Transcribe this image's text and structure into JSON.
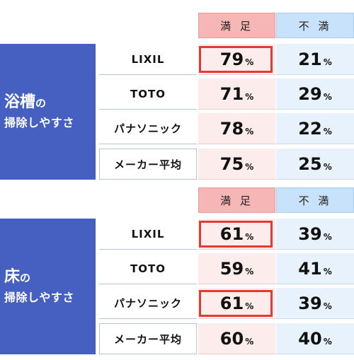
{
  "column_headers": {
    "satisfied": "満 足",
    "dissatisfied": "不 満"
  },
  "percent_sign": "%",
  "chart_data": [
    {
      "type": "table",
      "category_line1": "浴槽",
      "category_particle": "の",
      "category_line2": "掃除しやすさ",
      "rows": [
        {
          "maker": "LIXIL",
          "satisfied": 79,
          "dissatisfied": 21,
          "highlight": true
        },
        {
          "maker": "TOTO",
          "satisfied": 71,
          "dissatisfied": 29,
          "highlight": false
        },
        {
          "maker": "パナソニック",
          "satisfied": 78,
          "dissatisfied": 22,
          "highlight": false
        },
        {
          "maker": "メーカー平均",
          "satisfied": 75,
          "dissatisfied": 25,
          "highlight": false
        }
      ]
    },
    {
      "type": "table",
      "category_line1": "床",
      "category_particle": "の",
      "category_line2": "掃除しやすさ",
      "rows": [
        {
          "maker": "LIXIL",
          "satisfied": 61,
          "dissatisfied": 39,
          "highlight": true
        },
        {
          "maker": "TOTO",
          "satisfied": 59,
          "dissatisfied": 41,
          "highlight": false
        },
        {
          "maker": "パナソニック",
          "satisfied": 61,
          "dissatisfied": 39,
          "highlight": true
        },
        {
          "maker": "メーカー平均",
          "satisfied": 60,
          "dissatisfied": 40,
          "highlight": false
        }
      ]
    }
  ]
}
